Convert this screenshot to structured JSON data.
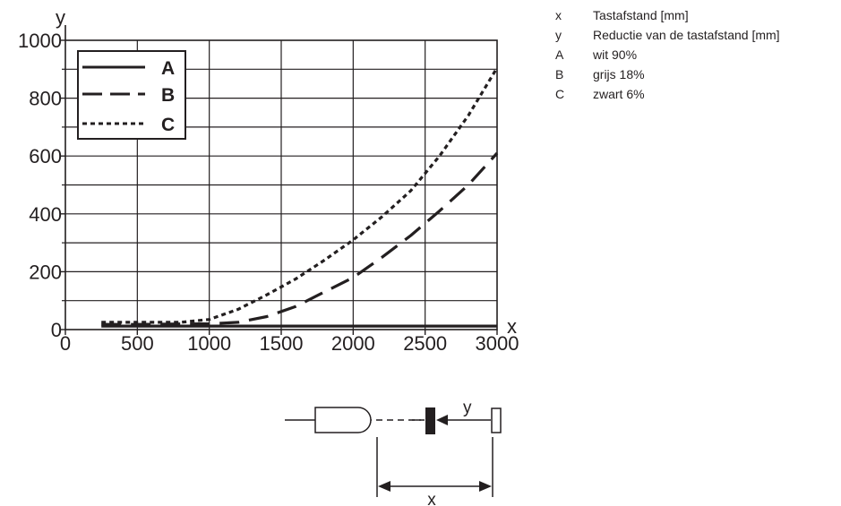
{
  "chart_data": {
    "type": "line",
    "xlabel": "x",
    "ylabel": "y",
    "xlim": [
      0,
      3000
    ],
    "ylim": [
      0,
      1000
    ],
    "x_ticks": [
      "0",
      "500",
      "1000",
      "1500",
      "2000",
      "2500",
      "3000"
    ],
    "y_ticks": [
      "0",
      "200",
      "400",
      "600",
      "800",
      "1000"
    ],
    "grid": true,
    "legend_position": "top-left",
    "series": [
      {
        "name": "A",
        "style": "solid",
        "color": "#231f20",
        "x": [
          250,
          500,
          1000,
          1500,
          2000,
          2500,
          3000
        ],
        "y": [
          12,
          12,
          12,
          12,
          12,
          12,
          12
        ]
      },
      {
        "name": "B",
        "style": "dashed",
        "color": "#231f20",
        "x": [
          250,
          500,
          1000,
          1200,
          1400,
          1600,
          1800,
          2000,
          2200,
          2400,
          2600,
          2800,
          3000
        ],
        "y": [
          18,
          18,
          20,
          25,
          45,
          80,
          130,
          180,
          250,
          325,
          410,
          500,
          610
        ]
      },
      {
        "name": "C",
        "style": "dotted",
        "color": "#231f20",
        "x": [
          250,
          500,
          800,
          1000,
          1200,
          1400,
          1600,
          1800,
          2000,
          2200,
          2400,
          2600,
          2800,
          3000
        ],
        "y": [
          25,
          25,
          25,
          35,
          70,
          120,
          175,
          240,
          310,
          390,
          480,
          600,
          740,
          905
        ]
      }
    ]
  },
  "key": [
    {
      "symbol": "x",
      "text": "Tastafstand [mm]"
    },
    {
      "symbol": "y",
      "text": "Reductie van de tastafstand [mm]"
    },
    {
      "symbol": "A",
      "text": "wit 90%"
    },
    {
      "symbol": "B",
      "text": "grijs 18%"
    },
    {
      "symbol": "C",
      "text": "zwart 6%"
    }
  ],
  "diagram": {
    "y_label": "y",
    "x_label": "x"
  }
}
